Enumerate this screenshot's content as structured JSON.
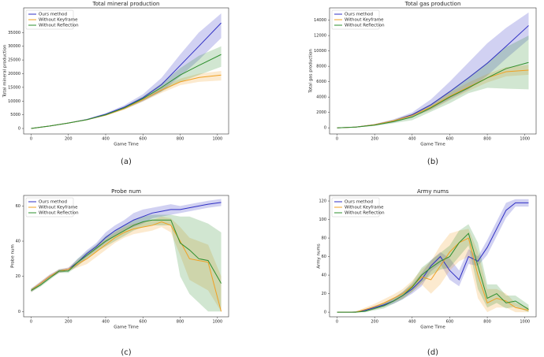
{
  "chart_data": [
    {
      "type": "line",
      "title": "Total mineral production",
      "caption": "(a)",
      "xlabel": "Game Time",
      "ylabel": "Total mineral production",
      "x": [
        0,
        100,
        200,
        300,
        400,
        500,
        600,
        700,
        800,
        900,
        1020
      ],
      "xlim": [
        -40,
        1060
      ],
      "xticks": [
        0,
        200,
        400,
        600,
        800,
        1000
      ],
      "ylim": [
        -2000,
        44000
      ],
      "yticks": [
        0,
        5000,
        10000,
        15000,
        20000,
        25000,
        30000,
        35000
      ],
      "legend": "upper left",
      "series": [
        {
          "name": "Ours method",
          "color": "#2f2fc4",
          "values": [
            0,
            900,
            2000,
            3300,
            5200,
            7800,
            11200,
            16000,
            23000,
            30000,
            38500
          ],
          "upper": [
            0,
            950,
            2100,
            3500,
            5600,
            8500,
            12500,
            18500,
            27000,
            35000,
            42000
          ],
          "lower": [
            0,
            850,
            1900,
            3100,
            4800,
            7100,
            9900,
            13500,
            19000,
            25000,
            33000
          ]
        },
        {
          "name": "Without Keyframe",
          "color": "#f0a023",
          "values": [
            0,
            900,
            2000,
            3200,
            4900,
            7300,
            10500,
            14000,
            17000,
            18600,
            19500
          ],
          "upper": [
            0,
            950,
            2100,
            3350,
            5200,
            7800,
            11200,
            15000,
            18200,
            20000,
            21000
          ],
          "lower": [
            0,
            850,
            1900,
            3050,
            4600,
            6800,
            9800,
            13000,
            15800,
            17000,
            17500
          ]
        },
        {
          "name": "Without Reflection",
          "color": "#2e8f2e",
          "values": [
            0,
            900,
            2000,
            3200,
            5000,
            7500,
            10900,
            15000,
            19500,
            23000,
            27000
          ],
          "upper": [
            0,
            950,
            2100,
            3350,
            5300,
            8000,
            11700,
            16500,
            22000,
            26500,
            30000
          ],
          "lower": [
            0,
            850,
            1900,
            3050,
            4700,
            7000,
            10100,
            13500,
            17000,
            19500,
            22500
          ]
        }
      ]
    },
    {
      "type": "line",
      "title": "Total gas production",
      "caption": "(b)",
      "xlabel": "Game Time",
      "ylabel": "Total gas production",
      "x": [
        0,
        100,
        200,
        300,
        400,
        500,
        600,
        700,
        800,
        900,
        1020
      ],
      "xlim": [
        -40,
        1060
      ],
      "xticks": [
        0,
        200,
        400,
        600,
        800,
        1000
      ],
      "ylim": [
        -800,
        15600
      ],
      "yticks": [
        0,
        2000,
        4000,
        6000,
        8000,
        10000,
        12000,
        14000
      ],
      "legend": "upper left",
      "series": [
        {
          "name": "Ours method",
          "color": "#2f2fc4",
          "values": [
            0,
            100,
            400,
            900,
            1700,
            3000,
            4700,
            6500,
            8400,
            10600,
            13300
          ],
          "upper": [
            0,
            150,
            500,
            1100,
            2000,
            3700,
            6000,
            8500,
            11000,
            13000,
            15000
          ],
          "lower": [
            0,
            50,
            300,
            700,
            1400,
            2400,
            3700,
            5000,
            6800,
            9000,
            11500
          ]
        },
        {
          "name": "Without Keyframe",
          "color": "#f0a023",
          "values": [
            0,
            100,
            400,
            900,
            1600,
            2700,
            4100,
            5300,
            6500,
            7300,
            7500
          ],
          "upper": [
            0,
            150,
            500,
            1050,
            1800,
            3100,
            4600,
            5900,
            7000,
            7900,
            8200
          ],
          "lower": [
            0,
            50,
            300,
            750,
            1400,
            2300,
            3600,
            4800,
            5900,
            6700,
            6900
          ]
        },
        {
          "name": "Without Reflection",
          "color": "#2e8f2e",
          "values": [
            0,
            100,
            350,
            800,
            1400,
            2600,
            4000,
            5200,
            6500,
            7700,
            8500
          ],
          "upper": [
            0,
            150,
            450,
            1000,
            1800,
            3100,
            4800,
            6600,
            8500,
            10500,
            12000
          ],
          "lower": [
            0,
            50,
            250,
            600,
            1000,
            2100,
            3200,
            4500,
            5200,
            5100,
            5000
          ]
        }
      ]
    },
    {
      "type": "line",
      "title": "Probe num",
      "caption": "(c)",
      "xlabel": "Game Time",
      "ylabel": "Probe num",
      "x": [
        0,
        50,
        100,
        150,
        200,
        250,
        300,
        350,
        400,
        450,
        500,
        550,
        600,
        650,
        700,
        750,
        800,
        850,
        900,
        950,
        1020
      ],
      "xlim": [
        -40,
        1060
      ],
      "xticks": [
        0,
        200,
        400,
        600,
        800,
        1000
      ],
      "ylim": [
        -3,
        66
      ],
      "yticks": [
        0,
        20,
        40,
        60
      ],
      "legend": "upper left",
      "series": [
        {
          "name": "Ours method",
          "color": "#2f2fc4",
          "values": [
            12,
            16,
            20,
            23,
            24,
            28,
            33,
            37,
            42,
            46,
            49,
            52,
            54,
            56,
            57,
            58,
            58,
            59,
            60,
            61,
            62
          ],
          "upper": [
            13,
            17,
            21,
            24,
            25,
            30,
            35,
            39,
            45,
            49,
            52,
            56,
            58,
            59,
            60,
            61,
            60,
            61,
            62,
            63,
            64
          ],
          "lower": [
            11,
            15,
            19,
            22,
            23,
            26,
            31,
            35,
            39,
            43,
            46,
            48,
            50,
            53,
            54,
            55,
            56,
            57,
            58,
            59,
            60
          ]
        },
        {
          "name": "Without Keyframe",
          "color": "#f0a023",
          "values": [
            12,
            16,
            20,
            23,
            24,
            27,
            30,
            34,
            38,
            42,
            45,
            47,
            48,
            49,
            51,
            49,
            40,
            30,
            29,
            28,
            0
          ],
          "upper": [
            13,
            17,
            21,
            24,
            25,
            29,
            33,
            37,
            41,
            45,
            48,
            50,
            51,
            52,
            54,
            53,
            48,
            42,
            40,
            38,
            20
          ],
          "lower": [
            11,
            15,
            19,
            22,
            23,
            25,
            27,
            31,
            35,
            39,
            42,
            44,
            45,
            46,
            48,
            45,
            32,
            18,
            15,
            12,
            0
          ]
        },
        {
          "name": "Without Reflection",
          "color": "#2e8f2e",
          "values": [
            12,
            15,
            19,
            23,
            23,
            28,
            32,
            36,
            40,
            43,
            46,
            49,
            51,
            52,
            52,
            52,
            39,
            35,
            30,
            29,
            16
          ],
          "upper": [
            13,
            16,
            20,
            24,
            24,
            30,
            34,
            38,
            43,
            46,
            49,
            52,
            54,
            55,
            55,
            55,
            54,
            54,
            52,
            50,
            45
          ],
          "lower": [
            11,
            14,
            18,
            22,
            22,
            26,
            30,
            34,
            37,
            40,
            43,
            46,
            48,
            49,
            49,
            49,
            20,
            10,
            5,
            0,
            0
          ]
        }
      ]
    },
    {
      "type": "line",
      "title": "Army nums",
      "caption": "(d)",
      "xlabel": "Game Time",
      "ylabel": "Army nums",
      "x": [
        0,
        50,
        100,
        150,
        200,
        250,
        300,
        350,
        400,
        450,
        500,
        550,
        600,
        650,
        700,
        750,
        800,
        850,
        900,
        950,
        1020
      ],
      "xlim": [
        -40,
        1060
      ],
      "xticks": [
        0,
        200,
        400,
        600,
        800,
        1000
      ],
      "ylim": [
        -5,
        126
      ],
      "yticks": [
        0,
        20,
        40,
        60,
        80,
        100,
        120
      ],
      "legend": "upper left",
      "series": [
        {
          "name": "Ours method",
          "color": "#2f2fc4",
          "values": [
            0,
            0,
            0,
            2,
            5,
            8,
            12,
            18,
            25,
            35,
            50,
            60,
            45,
            35,
            60,
            55,
            70,
            90,
            110,
            118,
            118
          ],
          "upper": [
            0,
            0,
            1,
            3,
            7,
            10,
            15,
            22,
            30,
            42,
            56,
            65,
            58,
            45,
            68,
            60,
            78,
            98,
            118,
            122,
            122
          ],
          "lower": [
            0,
            0,
            0,
            1,
            3,
            6,
            9,
            14,
            20,
            28,
            44,
            52,
            35,
            28,
            52,
            50,
            62,
            82,
            102,
            114,
            114
          ]
        },
        {
          "name": "Without Keyframe",
          "color": "#f0a023",
          "values": [
            0,
            0,
            0,
            3,
            6,
            10,
            15,
            20,
            28,
            38,
            35,
            50,
            65,
            75,
            80,
            40,
            10,
            15,
            12,
            5,
            2
          ],
          "upper": [
            0,
            0,
            1,
            5,
            9,
            14,
            19,
            25,
            34,
            46,
            55,
            72,
            85,
            88,
            90,
            65,
            25,
            25,
            20,
            10,
            5
          ],
          "lower": [
            0,
            0,
            0,
            1,
            3,
            6,
            11,
            15,
            22,
            30,
            20,
            30,
            45,
            55,
            60,
            15,
            0,
            5,
            5,
            0,
            0
          ]
        },
        {
          "name": "Without Reflection",
          "color": "#2e8f2e",
          "values": [
            0,
            0,
            0,
            1,
            4,
            7,
            12,
            18,
            27,
            40,
            48,
            55,
            60,
            75,
            85,
            50,
            15,
            20,
            10,
            12,
            3
          ],
          "upper": [
            0,
            0,
            1,
            2,
            6,
            10,
            15,
            22,
            32,
            48,
            56,
            64,
            72,
            88,
            95,
            75,
            30,
            30,
            18,
            18,
            8
          ],
          "lower": [
            0,
            0,
            0,
            0,
            2,
            4,
            9,
            14,
            22,
            32,
            40,
            46,
            48,
            60,
            72,
            25,
            5,
            10,
            4,
            6,
            0
          ]
        }
      ]
    }
  ]
}
